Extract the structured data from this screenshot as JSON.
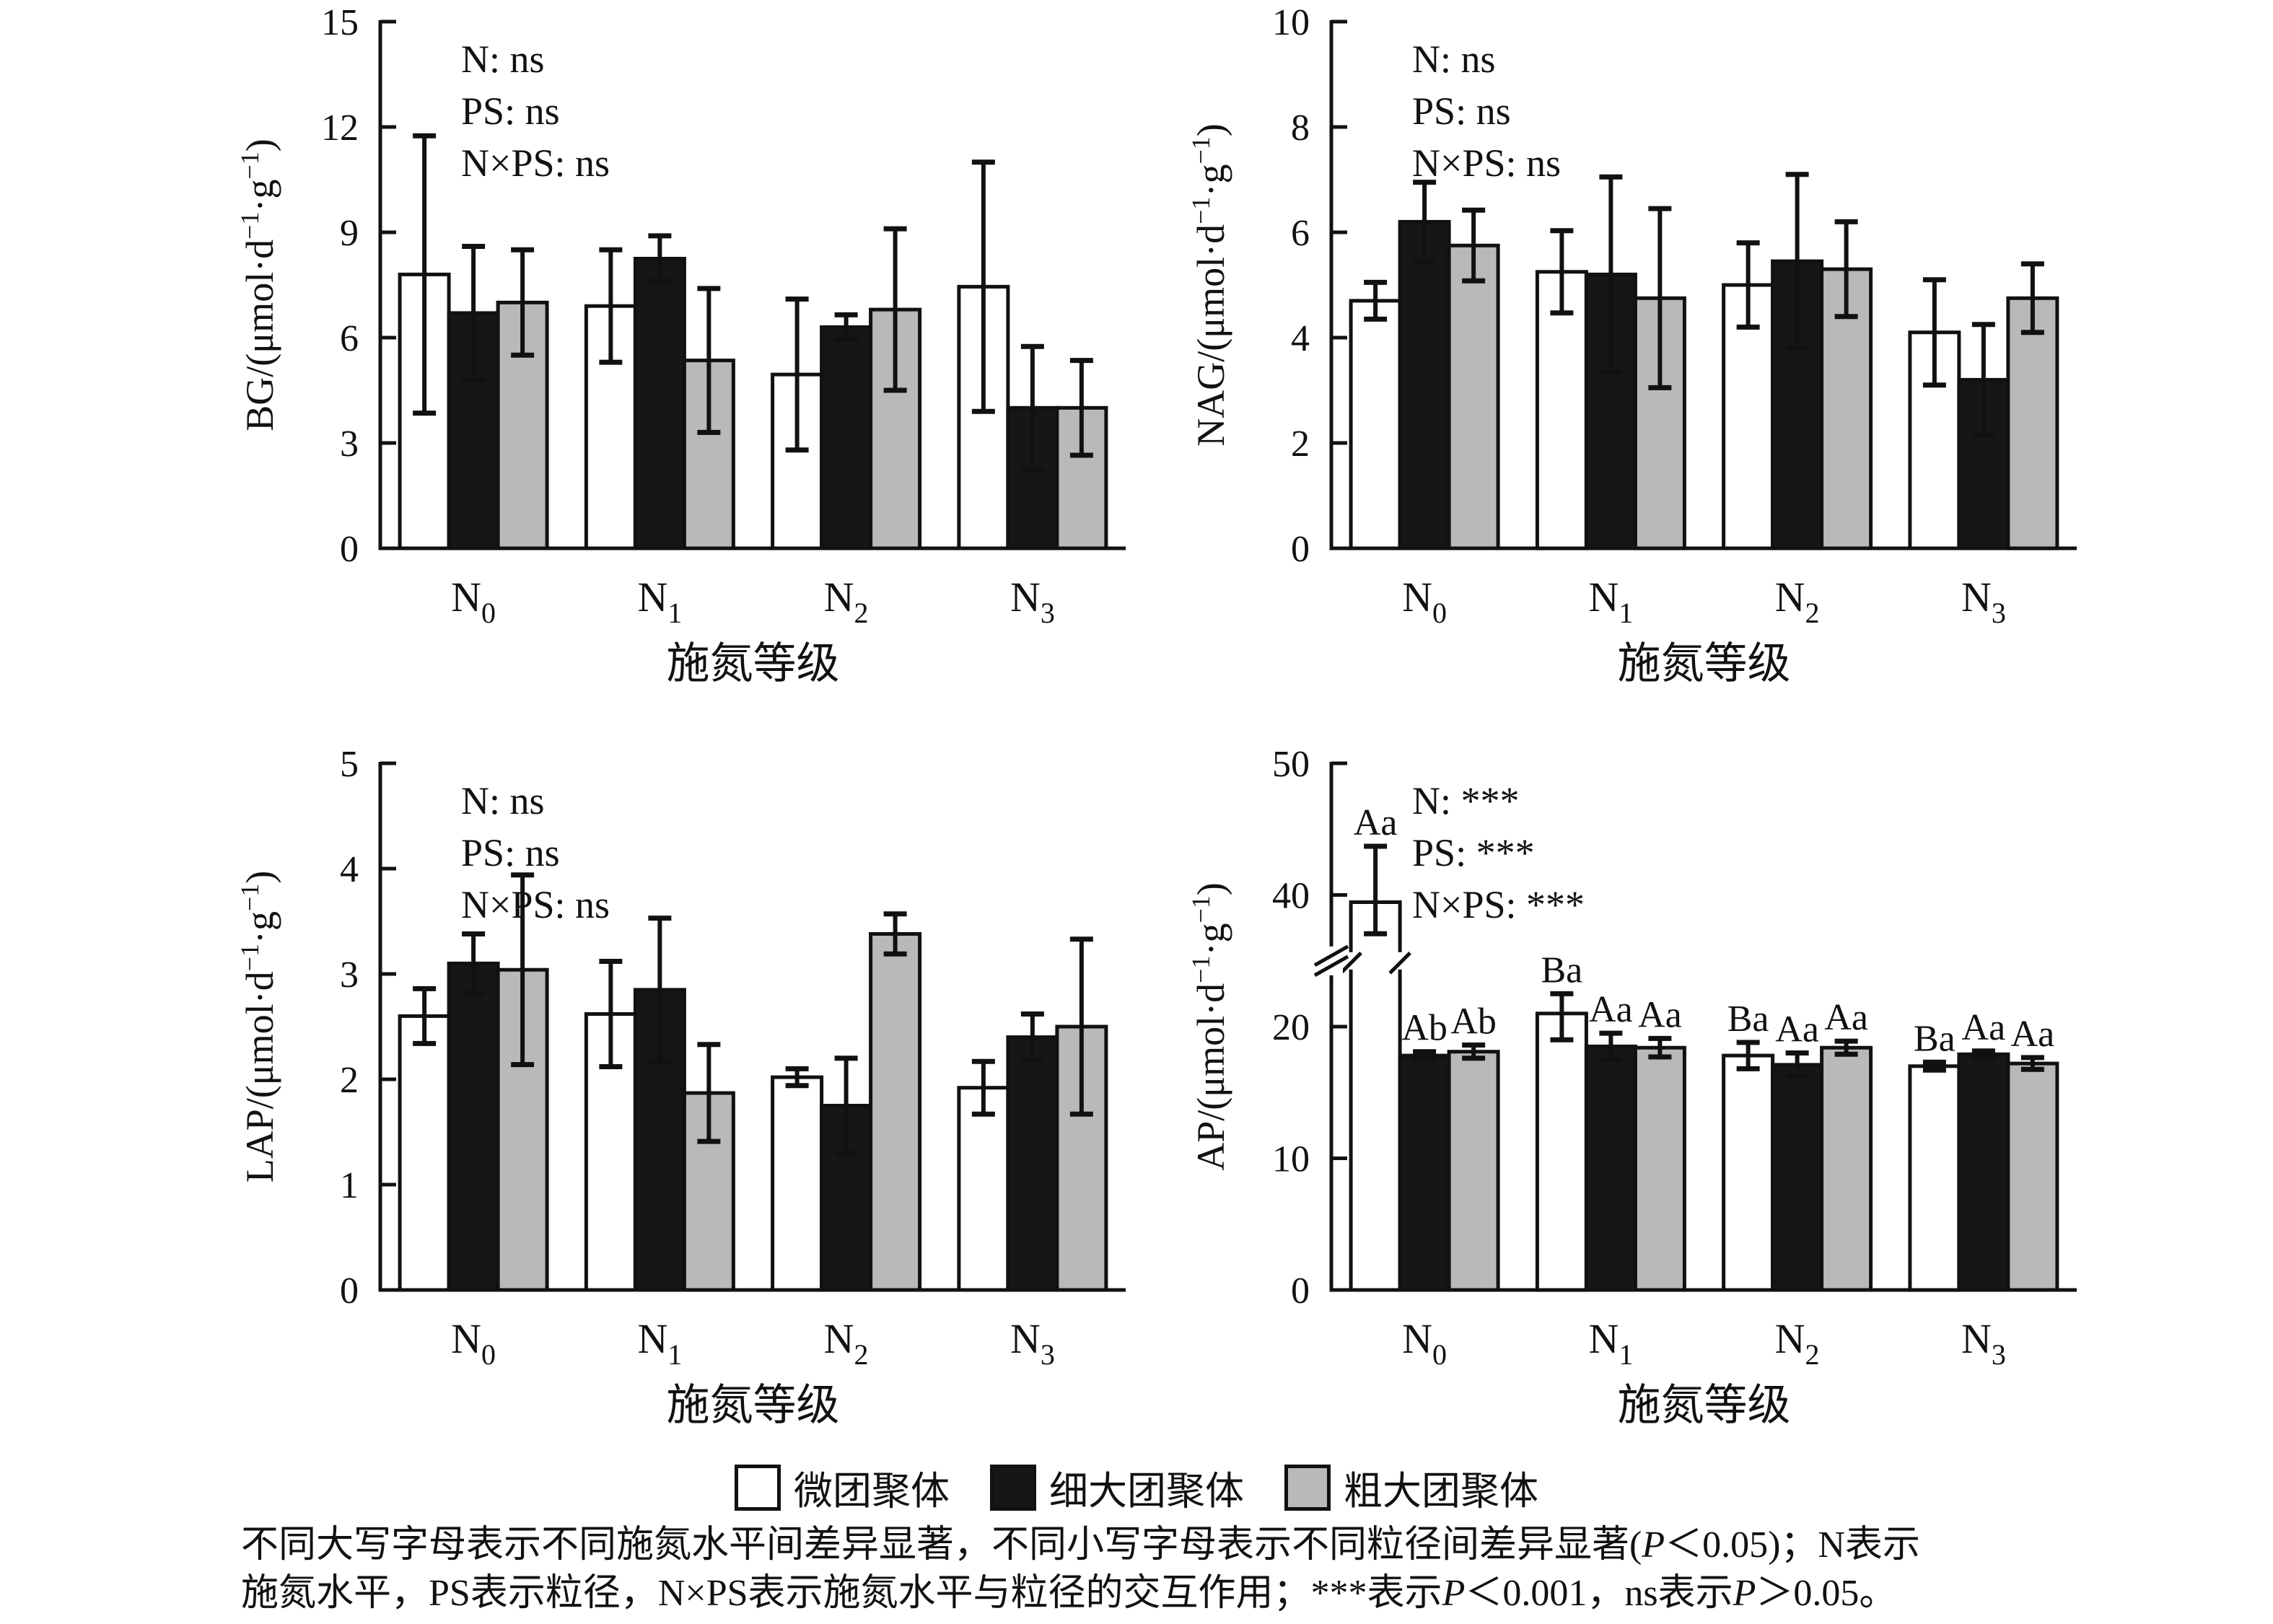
{
  "legend": {
    "items": [
      {
        "label": "微团聚体",
        "color": "#ffffff"
      },
      {
        "label": "细大团聚体",
        "color": "#161616"
      },
      {
        "label": "粗大团聚体",
        "color": "#b9b9b9"
      }
    ]
  },
  "footnote": {
    "lines": [
      [
        {
          "t": "不同大写字母表示不同施氮水平间差异显著，不同小写字母表示不同粒径间差异显著("
        },
        {
          "t": "P",
          "i": true
        },
        {
          "t": "＜0.05)；N表示"
        }
      ],
      [
        {
          "t": "施氮水平，PS表示粒径，N×PS表示施氮水平与粒径的交互作用；***表示"
        },
        {
          "t": "P",
          "i": true
        },
        {
          "t": "＜0.001，ns表示"
        },
        {
          "t": "P",
          "i": true
        },
        {
          "t": "＞0.05。"
        }
      ]
    ]
  },
  "chart_data": [
    {
      "type": "bar",
      "id": "BG",
      "ylabel": "BG/(μmol·d^−1^·g^−1^)",
      "xlabel": "施氮等级",
      "ylim": [
        0,
        15
      ],
      "yticks": [
        0,
        3,
        6,
        9,
        12,
        15
      ],
      "annotations": [
        "N: ns",
        "PS: ns",
        "N×PS: ns"
      ],
      "categories": [
        "N_0",
        "N_1",
        "N_2",
        "N_3"
      ],
      "series": [
        {
          "name": "微团聚体",
          "fill": "#ffffff",
          "values": [
            7.8,
            6.9,
            4.95,
            7.45
          ],
          "errors": [
            3.95,
            1.6,
            2.15,
            3.55
          ]
        },
        {
          "name": "细大团聚体",
          "fill": "#161616",
          "values": [
            6.7,
            8.25,
            6.3,
            4.0
          ],
          "errors": [
            1.9,
            0.65,
            0.35,
            1.75
          ]
        },
        {
          "name": "粗大团聚体",
          "fill": "#b9b9b9",
          "values": [
            7.0,
            5.35,
            6.8,
            4.0
          ],
          "errors": [
            1.5,
            2.05,
            2.3,
            1.35
          ]
        }
      ]
    },
    {
      "type": "bar",
      "id": "NAG",
      "ylabel": "NAG/(μmol·d^−1^·g^−1^)",
      "xlabel": "施氮等级",
      "ylim": [
        0,
        10
      ],
      "yticks": [
        0,
        2,
        4,
        6,
        8,
        10
      ],
      "annotations": [
        "N: ns",
        "PS: ns",
        "N×PS: ns"
      ],
      "categories": [
        "N_0",
        "N_1",
        "N_2",
        "N_3"
      ],
      "series": [
        {
          "name": "微团聚体",
          "fill": "#ffffff",
          "values": [
            4.7,
            5.25,
            5.0,
            4.1
          ],
          "errors": [
            0.35,
            0.78,
            0.8,
            1.0
          ]
        },
        {
          "name": "细大团聚体",
          "fill": "#161616",
          "values": [
            6.2,
            5.2,
            5.45,
            3.2
          ],
          "errors": [
            0.75,
            1.85,
            1.65,
            1.05
          ]
        },
        {
          "name": "粗大团聚体",
          "fill": "#b9b9b9",
          "values": [
            5.75,
            4.75,
            5.3,
            4.75
          ],
          "errors": [
            0.67,
            1.7,
            0.9,
            0.65
          ]
        }
      ]
    },
    {
      "type": "bar",
      "id": "LAP",
      "ylabel": "LAP/(μmol·d^−1^·g^−1^)",
      "xlabel": "施氮等级",
      "ylim": [
        0,
        5
      ],
      "yticks": [
        0,
        1,
        2,
        3,
        4,
        5
      ],
      "annotations": [
        "N: ns",
        "PS: ns",
        "N×PS: ns"
      ],
      "categories": [
        "N_0",
        "N_1",
        "N_2",
        "N_3"
      ],
      "series": [
        {
          "name": "微团聚体",
          "fill": "#ffffff",
          "values": [
            2.6,
            2.62,
            2.02,
            1.92
          ],
          "errors": [
            0.26,
            0.5,
            0.08,
            0.25
          ]
        },
        {
          "name": "细大团聚体",
          "fill": "#161616",
          "values": [
            3.1,
            2.85,
            1.75,
            2.4
          ],
          "errors": [
            0.28,
            0.68,
            0.45,
            0.22
          ]
        },
        {
          "name": "粗大团聚体",
          "fill": "#b9b9b9",
          "values": [
            3.04,
            1.87,
            3.38,
            2.5
          ],
          "errors": [
            0.9,
            0.46,
            0.19,
            0.83
          ]
        }
      ]
    },
    {
      "type": "bar",
      "id": "AP",
      "ylabel": "AP/(μmol·d^−1^·g^−1^)",
      "xlabel": "施氮等级",
      "ylim": [
        0,
        50
      ],
      "yticks": [
        0,
        10,
        20,
        40,
        50
      ],
      "axis_break": {
        "from": 20,
        "to": 40,
        "factor": 0.5
      },
      "annotations": [
        "N: ***",
        "PS: ***",
        "N×PS: ***"
      ],
      "categories": [
        "N_0",
        "N_1",
        "N_2",
        "N_3"
      ],
      "series": [
        {
          "name": "微团聚体",
          "fill": "#ffffff",
          "values": [
            38.9,
            22.0,
            17.8,
            17.0
          ],
          "errors": [
            4.8,
            3.0,
            1.0,
            0.3
          ],
          "sig_labels": [
            "Aa",
            "Ba",
            "Ba",
            "Ba"
          ]
        },
        {
          "name": "细大团聚体",
          "fill": "#161616",
          "values": [
            17.8,
            18.5,
            17.1,
            17.9
          ],
          "errors": [
            0.3,
            1.0,
            0.9,
            0.25
          ],
          "sig_labels": [
            "Ab",
            "Aa",
            "Aa",
            "Aa"
          ]
        },
        {
          "name": "粗大团聚体",
          "fill": "#b9b9b9",
          "values": [
            18.1,
            18.4,
            18.4,
            17.2
          ],
          "errors": [
            0.5,
            0.7,
            0.5,
            0.45
          ],
          "sig_labels": [
            "Ab",
            "Aa",
            "Aa",
            "Aa"
          ]
        }
      ]
    }
  ]
}
